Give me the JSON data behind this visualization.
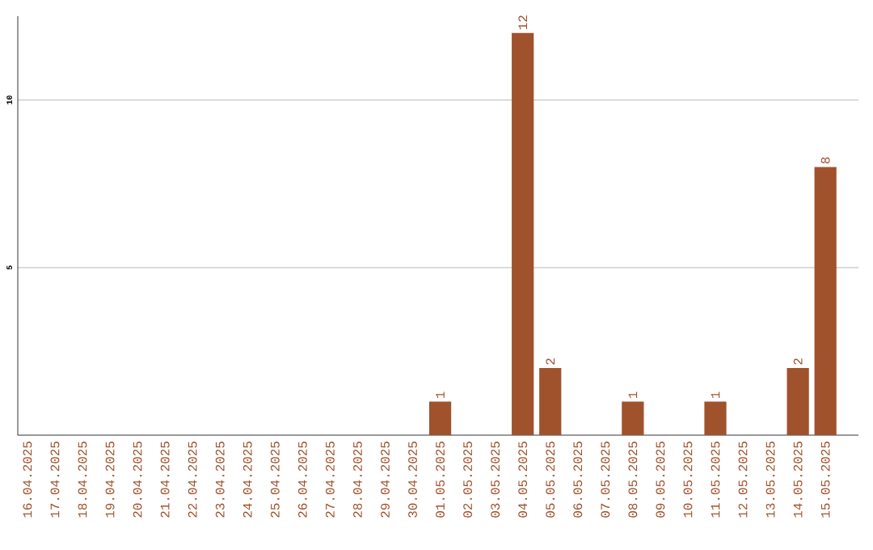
{
  "chart_data": {
    "type": "bar",
    "categories": [
      "16.04.2025",
      "17.04.2025",
      "18.04.2025",
      "19.04.2025",
      "20.04.2025",
      "21.04.2025",
      "22.04.2025",
      "23.04.2025",
      "24.04.2025",
      "25.04.2025",
      "26.04.2025",
      "27.04.2025",
      "28.04.2025",
      "29.04.2025",
      "30.04.2025",
      "01.05.2025",
      "02.05.2025",
      "03.05.2025",
      "04.05.2025",
      "05.05.2025",
      "06.05.2025",
      "07.05.2025",
      "08.05.2025",
      "09.05.2025",
      "10.05.2025",
      "11.05.2025",
      "12.05.2025",
      "13.05.2025",
      "14.05.2025",
      "15.05.2025"
    ],
    "values": [
      0,
      0,
      0,
      0,
      0,
      0,
      0,
      0,
      0,
      0,
      0,
      0,
      0,
      0,
      0,
      1,
      0,
      0,
      12,
      2,
      0,
      0,
      1,
      0,
      0,
      1,
      0,
      0,
      2,
      8
    ],
    "value_labels": [
      null,
      null,
      null,
      null,
      null,
      null,
      null,
      null,
      null,
      null,
      null,
      null,
      null,
      null,
      null,
      "1",
      null,
      null,
      "12",
      "2",
      null,
      null,
      "1",
      null,
      null,
      "1",
      null,
      null,
      "2",
      "8"
    ],
    "color": "#a0522d",
    "ylim": [
      0,
      12.5
    ],
    "yticks": [
      5,
      10
    ],
    "grid": "y"
  }
}
